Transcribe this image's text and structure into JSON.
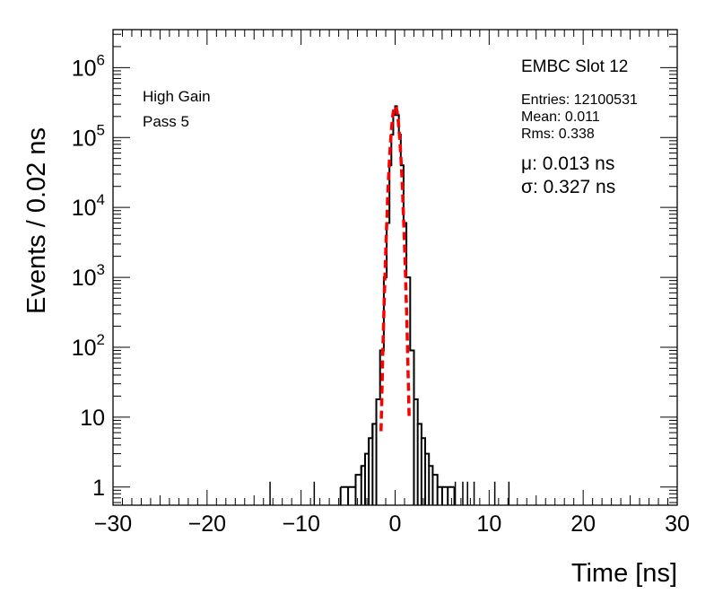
{
  "chart_data": {
    "type": "histogram",
    "xlabel": "Time [ns]",
    "ylabel": "Events / 0.02 ns",
    "xlim": [
      -30,
      30
    ],
    "ylim": [
      0.55,
      3500000
    ],
    "yscale": "log",
    "grid": false,
    "x_ticks": [
      "−30",
      "−20",
      "−10",
      "0",
      "10",
      "20",
      "30"
    ],
    "y_ticks": [
      {
        "value": 1,
        "base": "1",
        "exp": ""
      },
      {
        "value": 10,
        "base": "10",
        "exp": ""
      },
      {
        "value": 100,
        "base": "10",
        "exp": "2"
      },
      {
        "value": 1000,
        "base": "10",
        "exp": "3"
      },
      {
        "value": 10000,
        "base": "10",
        "exp": "4"
      },
      {
        "value": 100000,
        "base": "10",
        "exp": "5"
      },
      {
        "value": 1000000,
        "base": "10",
        "exp": "6"
      }
    ],
    "series": [
      {
        "color": "#000000",
        "style": "histogram",
        "x": [
          -5.8,
          -5.0,
          -4.2,
          -3.6,
          -3.2,
          -2.8,
          -2.4,
          -2.0,
          -1.6,
          -1.2,
          -0.9,
          -0.6,
          -0.4,
          -0.2,
          0.0,
          0.2,
          0.4,
          0.6,
          0.9,
          1.2,
          1.6,
          2.0,
          2.4,
          2.8,
          3.2,
          3.6,
          4.0,
          4.5,
          5.0,
          5.6,
          6.3
        ],
        "values": [
          1,
          1,
          1.5,
          2,
          3,
          5,
          8,
          18,
          90,
          1000,
          6000,
          40000,
          110000,
          210000,
          280000,
          210000,
          110000,
          40000,
          6000,
          1000,
          90,
          18,
          8,
          5,
          3,
          2,
          1.5,
          1,
          1,
          1,
          1
        ]
      },
      {
        "color": "#ff0000",
        "style": "dashed",
        "fit": "gaussian",
        "mu": 0.013,
        "sigma": 0.327,
        "peak": 280000,
        "x_range": [
          -1.5,
          1.5
        ]
      }
    ],
    "isolated_entries_x": [
      -13.3,
      -8.6,
      6.4,
      7.2,
      7.7,
      8.4,
      10.6,
      12.1
    ]
  },
  "labels": {
    "gain": "High Gain",
    "pass": "Pass 5"
  },
  "stats": {
    "title": "EMBC Slot 12",
    "entries": "Entries: 12100531",
    "mean": "Mean: 0.011",
    "rms": "Rms: 0.338",
    "mu": "μ: 0.013 ns",
    "sigma": "σ: 0.327 ns"
  }
}
